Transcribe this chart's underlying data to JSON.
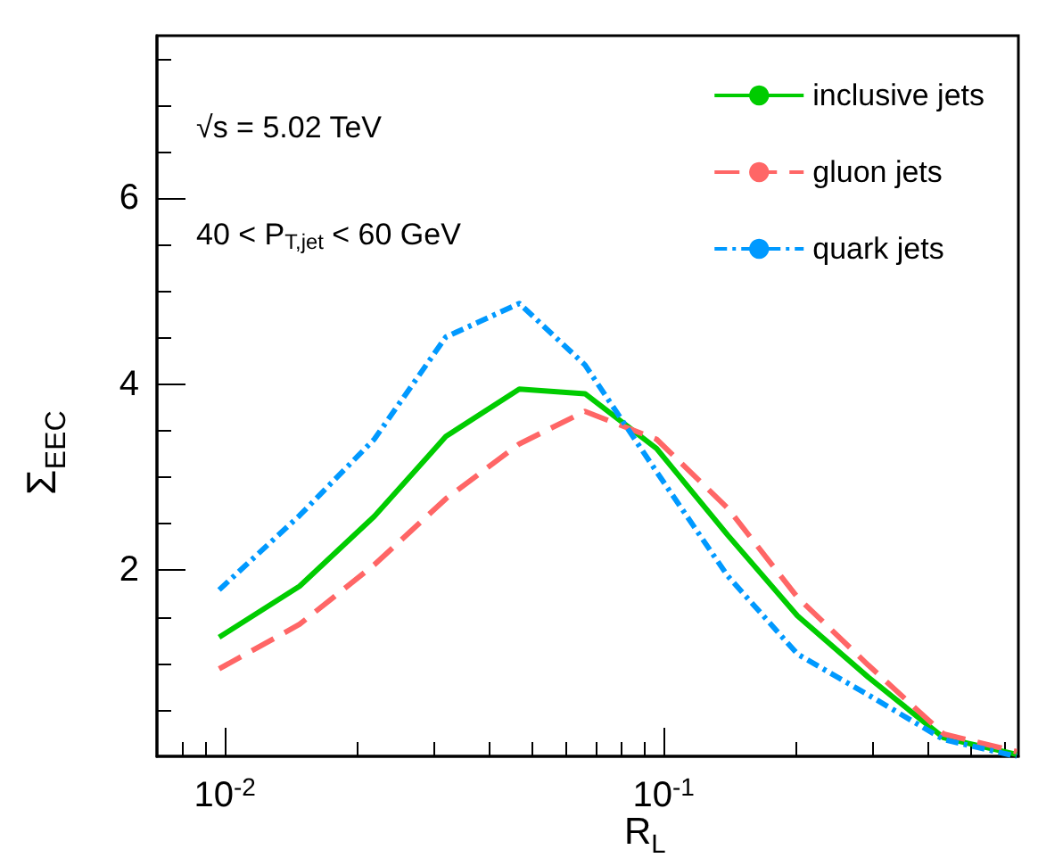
{
  "chart_data": {
    "type": "line",
    "xlabel": "R$_{L}$",
    "ylabel": "Σ$_{EEC}$",
    "x": [
      0.0097,
      0.0148,
      0.0219,
      0.0319,
      0.0469,
      0.0662,
      0.0964,
      0.14,
      0.202,
      0.293,
      0.435,
      0.638
    ],
    "series": [
      {
        "name": "inclusive jets",
        "color": "#00cc00",
        "line_style": "solid",
        "values": [
          1.28,
          1.83,
          2.58,
          3.44,
          3.95,
          3.9,
          3.31,
          2.38,
          1.51,
          0.85,
          0.2,
          0.02
        ]
      },
      {
        "name": "gluon jets",
        "color": "#ff6666",
        "line_style": "dashed",
        "values": [
          0.94,
          1.42,
          2.06,
          2.77,
          3.36,
          3.71,
          3.41,
          2.67,
          1.71,
          0.98,
          0.24,
          0.05
        ]
      },
      {
        "name": "quark jets",
        "color": "#0099ff",
        "line_style": "dotted",
        "values": [
          1.79,
          2.59,
          3.41,
          4.51,
          4.87,
          4.21,
          3.06,
          1.94,
          1.1,
          0.66,
          0.18,
          0.0
        ]
      }
    ],
    "log": "x",
    "xlim": [
      0.007,
      0.644
    ],
    "xticks": [
      {
        "value": 0.01,
        "label": "10$^{-2}$"
      },
      {
        "value": 0.1,
        "label": "10$^{-1}$"
      }
    ],
    "ylim": [
      0,
      7.75
    ],
    "yticks": [
      2,
      4,
      6
    ],
    "grid": false,
    "legend": "top right",
    "marker": "none",
    "annotations": [
      "√s = 5.02 TeV",
      "40 < P$_{T,jet}$ < 60 GeV"
    ]
  }
}
